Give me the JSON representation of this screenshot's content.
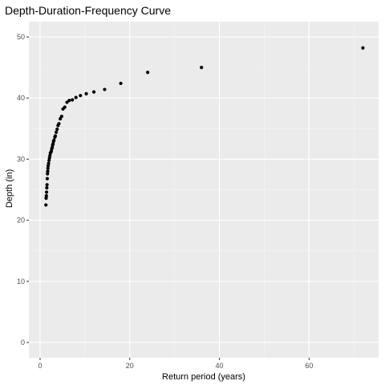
{
  "chart_data": {
    "type": "scatter",
    "title": "Depth-Duration-Frequency Curve",
    "xlabel": "Return period (years)",
    "ylabel": "Depth (in)",
    "xlim": [
      -2.5,
      75.5
    ],
    "ylim": [
      -2.5,
      52.5
    ],
    "x_ticks": [
      0,
      20,
      40,
      60
    ],
    "y_ticks": [
      0,
      10,
      20,
      30,
      40,
      50
    ],
    "grid": true,
    "legend": "none",
    "colors": {
      "panel": "#ebebeb",
      "grid_major": "#ffffff",
      "grid_minor": "#f5f5f5",
      "point": "#000000"
    },
    "series": [
      {
        "points": [
          [
            72.0,
            48.2
          ],
          [
            36.0,
            45.0
          ],
          [
            24.0,
            44.2
          ],
          [
            18.0,
            42.4
          ],
          [
            14.4,
            41.4
          ],
          [
            12.0,
            41.0
          ],
          [
            10.3,
            40.7
          ],
          [
            9.0,
            40.4
          ],
          [
            8.0,
            40.1
          ],
          [
            7.2,
            39.7
          ],
          [
            6.5,
            39.6
          ],
          [
            6.0,
            39.3
          ],
          [
            5.5,
            38.5
          ],
          [
            5.1,
            38.2
          ],
          [
            4.8,
            37.0
          ],
          [
            4.5,
            36.6
          ],
          [
            4.2,
            35.8
          ],
          [
            4.0,
            35.5
          ],
          [
            3.8,
            34.9
          ],
          [
            3.6,
            34.4
          ],
          [
            3.4,
            33.8
          ],
          [
            3.3,
            33.6
          ],
          [
            3.1,
            33.1
          ],
          [
            3.0,
            32.9
          ],
          [
            2.9,
            32.5
          ],
          [
            2.8,
            32.3
          ],
          [
            2.7,
            31.9
          ],
          [
            2.6,
            31.7
          ],
          [
            2.5,
            31.3
          ],
          [
            2.4,
            31.1
          ],
          [
            2.3,
            31.0
          ],
          [
            2.2,
            30.6
          ],
          [
            2.1,
            30.2
          ],
          [
            2.0,
            29.8
          ],
          [
            1.9,
            29.3
          ],
          [
            1.8,
            28.9
          ],
          [
            1.75,
            28.5
          ],
          [
            1.7,
            28.0
          ],
          [
            1.65,
            27.6
          ],
          [
            1.6,
            26.8
          ],
          [
            1.55,
            25.8
          ],
          [
            1.5,
            25.3
          ],
          [
            1.45,
            24.6
          ],
          [
            1.4,
            24.0
          ],
          [
            1.35,
            23.6
          ],
          [
            1.3,
            22.5
          ]
        ]
      }
    ]
  }
}
